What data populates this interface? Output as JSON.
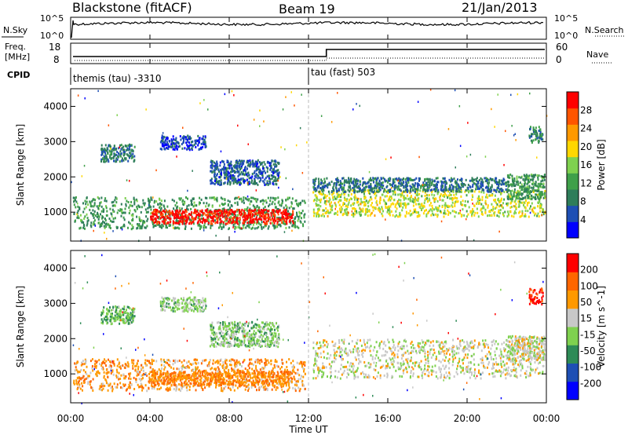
{
  "header": {
    "station": "Blackstone (fitACF)",
    "beam": "Beam 19",
    "date": "21/Jan/2013"
  },
  "nsky_panel": {
    "left_label": "N.Sky",
    "right_label": "N.Search",
    "left_ticks": [
      "10^5",
      "10^0"
    ],
    "right_ticks": [
      "10^5",
      "10^0"
    ]
  },
  "freq_panel": {
    "left_label_1": "Freq.",
    "left_label_2": "[MHz]",
    "right_label": "Nave",
    "left_ticks": [
      "18",
      "8"
    ],
    "right_ticks": [
      "60",
      "0"
    ]
  },
  "cpid_panel": {
    "label": "CPID",
    "segments": [
      {
        "name": "themis (tau) -3310",
        "start_hour": 0
      },
      {
        "name": "tau (fast) 503",
        "start_hour": 12.0
      }
    ]
  },
  "colors": {
    "power": [
      "#0000ff",
      "#1e4fb4",
      "#2e7d5a",
      "#3fa04a",
      "#7fd14f",
      "#ffd700",
      "#ff9900",
      "#ff5500",
      "#ff0000"
    ],
    "velocity": [
      "#0000ff",
      "#1e4fb4",
      "#2e8b57",
      "#7fd14f",
      "#c8c8c8",
      "#ff9900",
      "#ff6600",
      "#ff0000"
    ]
  },
  "chart_data": [
    {
      "type": "heatmap",
      "name": "power",
      "ylabel": "Slant Range [km]",
      "colorbar_label": "Power [dB]",
      "colorbar_ticks": [
        "28",
        "24",
        "20",
        "16",
        "12",
        "8",
        "4"
      ],
      "yticks": [
        "4000",
        "3000",
        "2000",
        "1000"
      ],
      "ylim": [
        180,
        4500
      ],
      "xlim": [
        0,
        24
      ],
      "regions": [
        {
          "x0": 0.1,
          "x1": 11.8,
          "y0": 550,
          "y1": 1450,
          "level": 0.35
        },
        {
          "x0": 4.0,
          "x1": 11.2,
          "y0": 700,
          "y1": 1100,
          "level": 0.95
        },
        {
          "x0": 1.5,
          "x1": 3.2,
          "y0": 2450,
          "y1": 2950,
          "level": 0.25
        },
        {
          "x0": 4.5,
          "x1": 6.8,
          "y0": 2800,
          "y1": 3200,
          "level": 0.15
        },
        {
          "x0": 7.0,
          "x1": 10.5,
          "y0": 1800,
          "y1": 2500,
          "level": 0.2
        },
        {
          "x0": 12.2,
          "x1": 23.9,
          "y0": 900,
          "y1": 1650,
          "level": 0.55
        },
        {
          "x0": 12.2,
          "x1": 22.0,
          "y0": 1600,
          "y1": 2000,
          "level": 0.25
        },
        {
          "x0": 22.0,
          "x1": 23.9,
          "y0": 1400,
          "y1": 2100,
          "level": 0.35
        },
        {
          "x0": 23.1,
          "x1": 23.8,
          "y0": 3000,
          "y1": 3450,
          "level": 0.3
        }
      ]
    },
    {
      "type": "heatmap",
      "name": "velocity",
      "ylabel": "Slant Range [km]",
      "colorbar_label": "Velocity [m s^-1]",
      "colorbar_ticks": [
        "200",
        "100",
        "50",
        "15",
        "-15",
        "-50",
        "-100",
        "-200"
      ],
      "yticks": [
        "4000",
        "3000",
        "2000",
        "1000"
      ],
      "ylim": [
        180,
        4500
      ],
      "xlim": [
        0,
        24
      ],
      "regions": [
        {
          "x0": 0.1,
          "x1": 11.8,
          "y0": 550,
          "y1": 1450,
          "level": 0.7
        },
        {
          "x0": 4.0,
          "x1": 11.2,
          "y0": 700,
          "y1": 1100,
          "level": 0.75
        },
        {
          "x0": 1.5,
          "x1": 3.2,
          "y0": 2450,
          "y1": 2950,
          "level": 0.4
        },
        {
          "x0": 4.5,
          "x1": 6.8,
          "y0": 2800,
          "y1": 3200,
          "level": 0.45
        },
        {
          "x0": 7.0,
          "x1": 10.5,
          "y0": 1800,
          "y1": 2500,
          "level": 0.45
        },
        {
          "x0": 12.2,
          "x1": 23.9,
          "y0": 900,
          "y1": 2000,
          "level": 0.55
        },
        {
          "x0": 22.0,
          "x1": 23.9,
          "y0": 1400,
          "y1": 2100,
          "level": 0.55
        },
        {
          "x0": 23.1,
          "x1": 23.8,
          "y0": 3000,
          "y1": 3450,
          "level": 0.95
        }
      ]
    }
  ],
  "xaxis": {
    "label": "Time UT",
    "ticks": [
      "00:00",
      "04:00",
      "08:00",
      "12:00",
      "16:00",
      "20:00",
      "00:00"
    ],
    "tick_hours": [
      0,
      4,
      8,
      12,
      16,
      20,
      24
    ]
  }
}
